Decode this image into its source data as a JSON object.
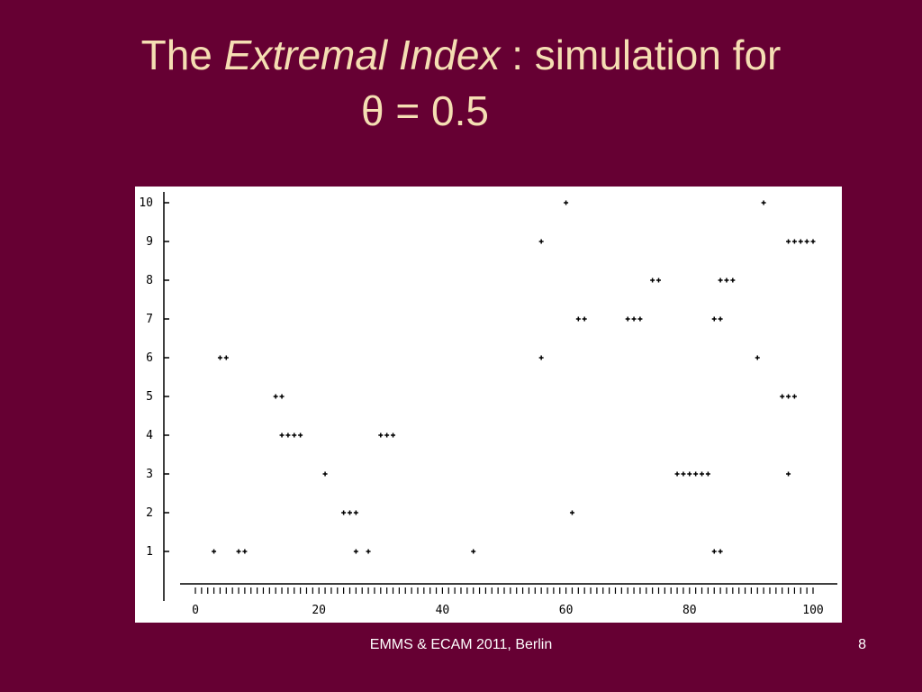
{
  "slide": {
    "title_pre": "The ",
    "title_italic": "Extremal Index",
    "title_post": " : simulation for",
    "title_line2": "θ = 0.5",
    "footer": "EMMS & ECAM 2011, Berlin",
    "page_number": "8"
  },
  "colors": {
    "background": "#660033",
    "title": "#f5deb3",
    "chart_bg": "#ffffff",
    "marks": "#000000"
  },
  "chart_data": {
    "type": "scatter",
    "title": "",
    "xlabel": "",
    "ylabel": "",
    "xlim": [
      0,
      100
    ],
    "ylim": [
      0,
      10
    ],
    "x_ticks": [
      0,
      20,
      40,
      60,
      80,
      100
    ],
    "x_tick_labels": [
      "0",
      "20",
      "40",
      "60",
      "80",
      "100"
    ],
    "y_ticks": [
      1,
      2,
      3,
      4,
      5,
      6,
      7,
      8,
      9,
      10
    ],
    "y_tick_labels": [
      "1",
      "2",
      "3",
      "4",
      "5",
      "6",
      "7",
      "8",
      "9",
      "10"
    ],
    "grid": false,
    "baseline_marks": "y=0 at every integer x from 0 to 100",
    "series": [
      {
        "points": [
          [
            3,
            1
          ],
          [
            4,
            6
          ],
          [
            5,
            6
          ],
          [
            7,
            1
          ],
          [
            8,
            1
          ],
          [
            13,
            5
          ],
          [
            14,
            5
          ],
          [
            14,
            4
          ],
          [
            15,
            4
          ],
          [
            16,
            4
          ],
          [
            17,
            4
          ],
          [
            21,
            3
          ],
          [
            24,
            2
          ],
          [
            25,
            2
          ],
          [
            26,
            2
          ],
          [
            26,
            1
          ],
          [
            28,
            1
          ],
          [
            30,
            4
          ],
          [
            31,
            4
          ],
          [
            32,
            4
          ],
          [
            45,
            1
          ],
          [
            56,
            9
          ],
          [
            56,
            6
          ],
          [
            60,
            10
          ],
          [
            61,
            2
          ],
          [
            62,
            7
          ],
          [
            63,
            7
          ],
          [
            70,
            7
          ],
          [
            71,
            7
          ],
          [
            72,
            7
          ],
          [
            74,
            8
          ],
          [
            75,
            8
          ],
          [
            78,
            3
          ],
          [
            79,
            3
          ],
          [
            80,
            3
          ],
          [
            81,
            3
          ],
          [
            82,
            3
          ],
          [
            83,
            3
          ],
          [
            84,
            7
          ],
          [
            85,
            7
          ],
          [
            84,
            1
          ],
          [
            85,
            1
          ],
          [
            85,
            8
          ],
          [
            86,
            8
          ],
          [
            87,
            8
          ],
          [
            91,
            6
          ],
          [
            92,
            10
          ],
          [
            95,
            5
          ],
          [
            96,
            5
          ],
          [
            97,
            5
          ],
          [
            96,
            3
          ],
          [
            96,
            9
          ],
          [
            97,
            9
          ],
          [
            98,
            9
          ],
          [
            99,
            9
          ],
          [
            100,
            9
          ]
        ]
      }
    ]
  }
}
